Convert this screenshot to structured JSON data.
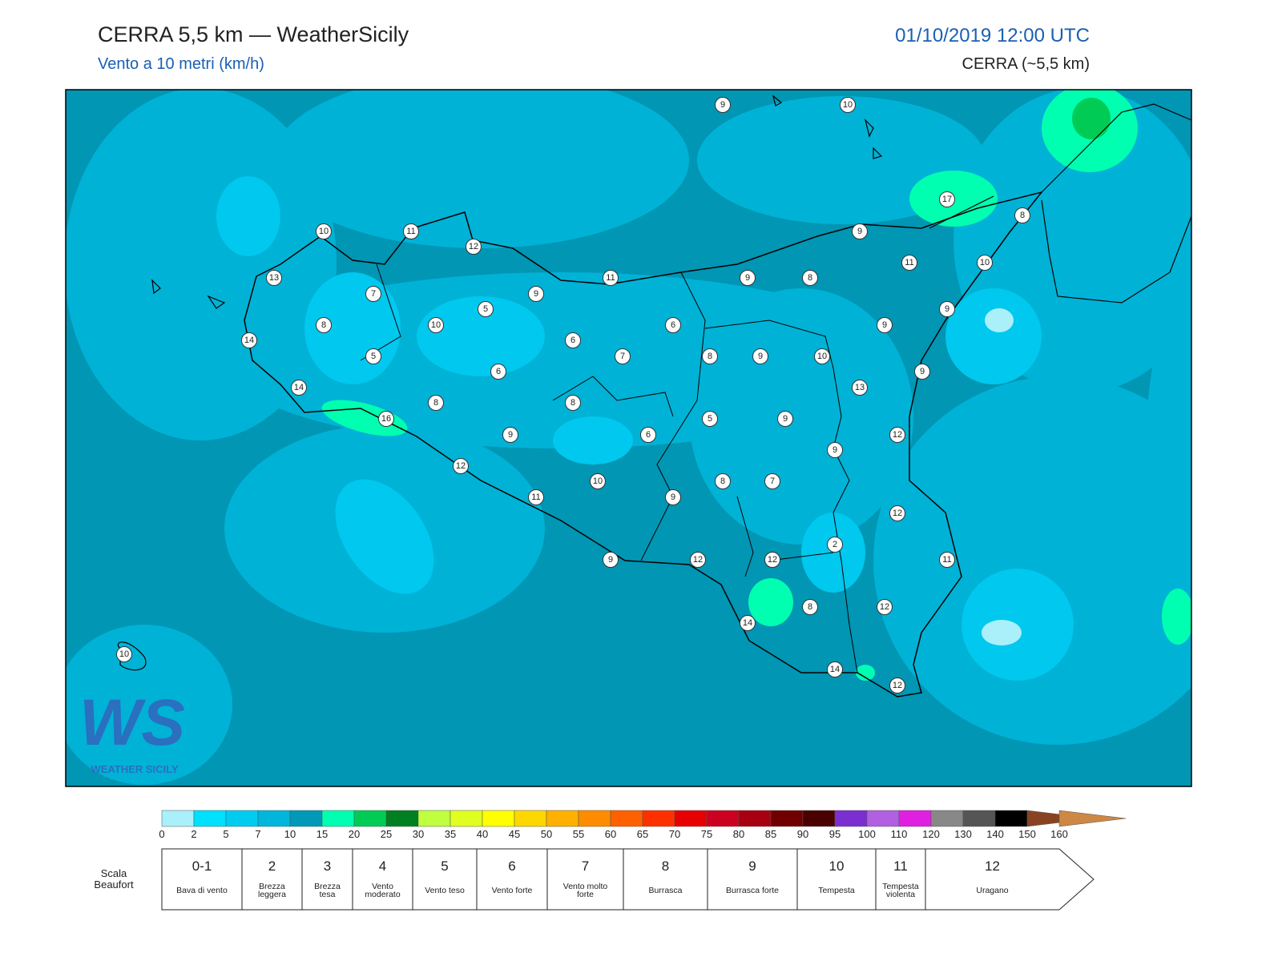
{
  "header": {
    "title": "CERRA 5,5 km — WeatherSicily",
    "subtitle": "Vento a 10 metri (km/h)",
    "datetime": "01/10/2019 12:00 UTC",
    "model": "CERRA (~5,5 km)"
  },
  "logo": {
    "mark": "WS",
    "name": "WEATHER SICILY"
  },
  "station_values": [
    9,
    10,
    17,
    8,
    10,
    11,
    12,
    9,
    11,
    10,
    13,
    11,
    9,
    8,
    7,
    9,
    5,
    9,
    8,
    10,
    6,
    9,
    14,
    6,
    5,
    7,
    8,
    9,
    10,
    6,
    9,
    14,
    13,
    8,
    8,
    16,
    5,
    9,
    9,
    6,
    12,
    9,
    12,
    10,
    8,
    7,
    11,
    9,
    12,
    2,
    9,
    12,
    12,
    11,
    8,
    12,
    14,
    14,
    12,
    10
  ],
  "colorbar": {
    "ticks": [
      0,
      2,
      5,
      7,
      10,
      15,
      20,
      25,
      30,
      35,
      40,
      45,
      50,
      55,
      60,
      65,
      70,
      75,
      80,
      85,
      90,
      95,
      100,
      110,
      120,
      130,
      140,
      150,
      160
    ],
    "colors": [
      "#aaf0fb",
      "#00e0ff",
      "#00ccf0",
      "#00b6dc",
      "#0099b8",
      "#00ffb0",
      "#00cc55",
      "#008020",
      "#bfff40",
      "#e0ff20",
      "#ffff00",
      "#ffd700",
      "#ffb000",
      "#ff8c00",
      "#ff6000",
      "#ff3000",
      "#e60000",
      "#cc0020",
      "#a80010",
      "#700000",
      "#4a0000",
      "#7b2fd0",
      "#b060e0",
      "#e020e0",
      "#888888",
      "#555555",
      "#000000",
      "#884422",
      "#cc8844"
    ]
  },
  "beaufort": {
    "title": "Scala Beaufort",
    "levels": [
      {
        "force": "0-1",
        "label": "Bava di vento"
      },
      {
        "force": "2",
        "label": "Brezza leggera"
      },
      {
        "force": "3",
        "label": "Brezza tesa"
      },
      {
        "force": "4",
        "label": "Vento moderato"
      },
      {
        "force": "5",
        "label": "Vento teso"
      },
      {
        "force": "6",
        "label": "Vento forte"
      },
      {
        "force": "7",
        "label": "Vento molto forte"
      },
      {
        "force": "8",
        "label": "Burrasca"
      },
      {
        "force": "9",
        "label": "Burrasca forte"
      },
      {
        "force": "10",
        "label": "Tempesta"
      },
      {
        "force": "11",
        "label": "Tempesta violenta"
      },
      {
        "force": "12",
        "label": "Uragano"
      }
    ]
  }
}
